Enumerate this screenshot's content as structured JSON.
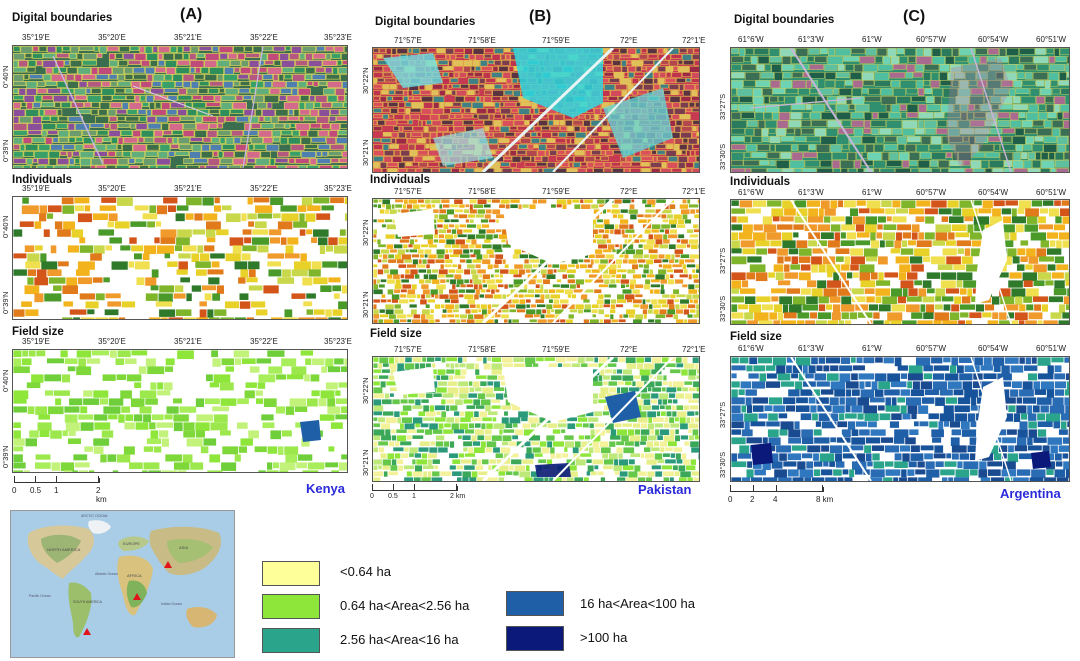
{
  "columns": [
    {
      "letter": "(A)",
      "country": "Kenya",
      "x_ticks": [
        "35°19'E",
        "35°20'E",
        "35°21'E",
        "35°22'E",
        "35°23'E"
      ],
      "y_ticks": [
        "0°40'N",
        "0°39'N"
      ],
      "scale": {
        "labels": [
          "0",
          "0.5",
          "1",
          "2 km"
        ]
      }
    },
    {
      "letter": "(B)",
      "country": "Pakistan",
      "x_ticks": [
        "71°57'E",
        "71°58'E",
        "71°59'E",
        "72°E",
        "72°1'E"
      ],
      "y_ticks": [
        "30°22'N",
        "30°21'N"
      ],
      "scale": {
        "labels": [
          "0",
          "0.5",
          "1",
          "2 km"
        ]
      }
    },
    {
      "letter": "(C)",
      "country": "Argentina",
      "x_ticks": [
        "61°6'W",
        "61°3'W",
        "61°W",
        "60°57'W",
        "60°54'W",
        "60°51'W"
      ],
      "y_ticks": [
        "33°27'S",
        "33°30'S"
      ],
      "scale": {
        "labels": [
          "0",
          "2",
          "4",
          "8 km"
        ]
      }
    }
  ],
  "sections": {
    "digital": "Digital boundaries",
    "individuals": "Individuals",
    "field_size": "Field size"
  },
  "world_map": {
    "labels": [
      "NORTH AMERICA",
      "EUROPE",
      "ASIA",
      "AFRICA",
      "SOUTH AMERICA",
      "Atlantic Ocean",
      "Pacific Ocean",
      "Indian Ocean",
      "ARCTIC OCEAN"
    ],
    "markers": [
      "kenya",
      "pakistan",
      "argentina"
    ]
  },
  "legend": {
    "items": [
      {
        "label": "<0.64 ha",
        "color": "#ffff99"
      },
      {
        "label": "0.64 ha<Area<2.56 ha",
        "color": "#8ee63a"
      },
      {
        "label": "2.56 ha<Area<16 ha",
        "color": "#2aa58c"
      },
      {
        "label": "16 ha<Area<100 ha",
        "color": "#1f5fa8"
      },
      {
        "label": ">100 ha",
        "color": "#0b1a7a"
      }
    ]
  }
}
